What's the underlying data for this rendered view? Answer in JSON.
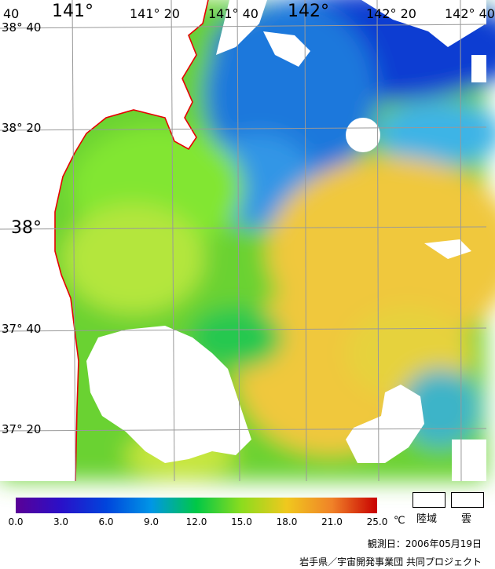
{
  "map": {
    "lon_labels": [
      "141°",
      "141° 20",
      "141° 40",
      "142°",
      "142° 20",
      "142° 40"
    ],
    "lat_labels": [
      "38° 40",
      "38° 20",
      "38°",
      "37° 40",
      "37° 20"
    ],
    "corner_label": "40",
    "colors": {
      "land": "#ffffff",
      "cloud": "#ffffff",
      "coastline": "#e60000",
      "grid": "#999999"
    }
  },
  "legend": {
    "ticks": [
      "0.0",
      "3.0",
      "6.0",
      "9.0",
      "12.0",
      "15.0",
      "18.0",
      "21.0",
      "25.0"
    ],
    "unit": "℃",
    "scale_colors": [
      "#5a0096",
      "#2a10c8",
      "#0044dc",
      "#0096e6",
      "#00c846",
      "#8cdc1e",
      "#f0c81e",
      "#f08228",
      "#c80000"
    ],
    "land_label": "陸域",
    "cloud_label": "雲"
  },
  "observation_date": "観測日：2006年05月19日",
  "credit": "岩手県／宇宙開発事業団 共同プロジェクト"
}
